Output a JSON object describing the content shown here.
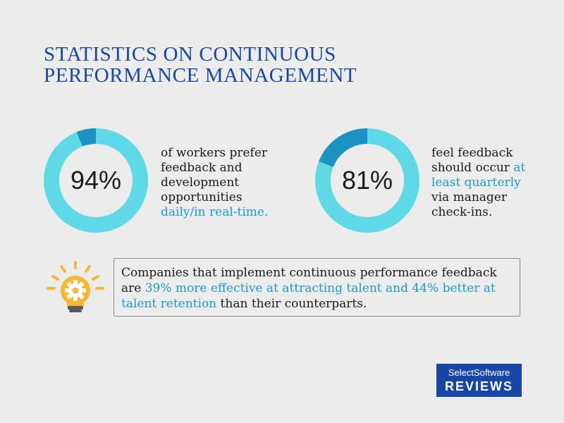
{
  "title": {
    "line1": "STATISTICS ON CONTINUOUS",
    "line2": "PERFORMANCE MANAGEMENT"
  },
  "colors": {
    "title": "#1747a6",
    "ring_light": "#5fd9e6",
    "ring_dark": "#1b93c0",
    "accent_text": "#1a9cc7",
    "bulb": "#f7b733"
  },
  "stats": [
    {
      "value": "94%",
      "percent": 94,
      "text_lines": [
        "of workers prefer",
        "feedback and",
        "development",
        "opportunities"
      ],
      "accent_line": "daily/in real-time."
    },
    {
      "value": "81%",
      "percent": 81,
      "line1_plain": "feel feedback",
      "line1_pre": "should occur ",
      "line1_accent": "at",
      "line2_accent": "least quarterly",
      "line3": "via manager",
      "line4": "check-ins."
    }
  ],
  "callout": {
    "icon": "lightbulb-gear-icon",
    "part1": "Companies that implement continuous performance feedback are ",
    "accent1": "39% more effective at attracting talent and 44% better at talent retention",
    "part2": " than their counterparts."
  },
  "logo": {
    "top": "SelectSoftware",
    "bottom": "REVIEWS"
  }
}
